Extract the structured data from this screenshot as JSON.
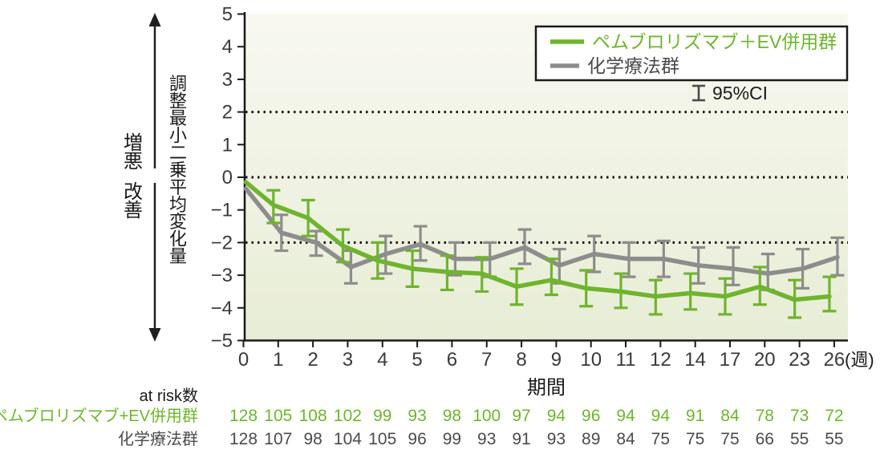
{
  "chart_data": {
    "type": "line",
    "title": "",
    "xlabel": "期間",
    "x_unit_label": "(週)",
    "ylabel": "調整最小二乗平均変化量",
    "ylim": [
      -5,
      5
    ],
    "ytick_labels": [
      "5",
      "4",
      "3",
      "2",
      "1",
      "0",
      "−1",
      "−2",
      "−3",
      "−4",
      "−5"
    ],
    "ytick_values": [
      5,
      4,
      3,
      2,
      1,
      0,
      -1,
      -2,
      -3,
      -4,
      -5
    ],
    "categories": [
      "0",
      "1",
      "2",
      "3",
      "4",
      "5",
      "6",
      "7",
      "8",
      "9",
      "10",
      "11",
      "12",
      "14",
      "17",
      "20",
      "23",
      "26"
    ],
    "reference_lines": [
      2,
      0,
      -2
    ],
    "grid": "off",
    "legend_position": "top-right",
    "direction_labels": {
      "up": "増悪",
      "down": "改善"
    },
    "legend": {
      "ci_label": "95%CI"
    },
    "colors": {
      "pembro_green": "#6fb42e",
      "chemo_gray": "#8d8d8d",
      "dark_text": "#4b4b4b",
      "plot_bg_top": "#f8f8f1",
      "plot_bg_bottom": "#e7edd5"
    },
    "series": [
      {
        "name": "ペムブロリズマブ＋EV併用群",
        "color": "#6fb42e",
        "values": [
          -0.15,
          -0.85,
          -1.25,
          -2.1,
          -2.55,
          -2.8,
          -2.9,
          -2.95,
          -3.35,
          -3.15,
          -3.4,
          -3.5,
          -3.65,
          -3.55,
          -3.65,
          -3.35,
          -3.75,
          -3.65
        ],
        "ci_high": [
          null,
          -0.4,
          -0.7,
          -1.6,
          -2.0,
          -2.25,
          -2.4,
          -2.45,
          -2.8,
          -2.5,
          -2.85,
          -2.95,
          -3.15,
          -2.95,
          -3.1,
          -2.75,
          -3.15,
          -3.05
        ],
        "ci_low": [
          null,
          -1.4,
          -1.8,
          -2.6,
          -3.1,
          -3.35,
          -3.45,
          -3.5,
          -3.9,
          -3.6,
          -3.95,
          -4.0,
          -4.2,
          -4.05,
          -4.2,
          -3.9,
          -4.3,
          -4.1
        ]
      },
      {
        "name": "化学療法群",
        "color": "#8d8d8d",
        "values": [
          -0.35,
          -1.7,
          -2.0,
          -2.75,
          -2.35,
          -2.05,
          -2.5,
          -2.5,
          -2.15,
          -2.7,
          -2.35,
          -2.5,
          -2.5,
          -2.7,
          -2.8,
          -2.95,
          -2.8,
          -2.45
        ],
        "ci_high": [
          null,
          -1.15,
          -1.65,
          -2.25,
          -1.8,
          -1.5,
          -2.0,
          -2.0,
          -1.6,
          -2.2,
          -1.8,
          -2.0,
          -1.95,
          -2.15,
          -2.15,
          -2.35,
          -2.2,
          -1.85
        ],
        "ci_low": [
          null,
          -2.25,
          -2.4,
          -3.25,
          -2.95,
          -2.55,
          -3.0,
          -3.05,
          -2.65,
          -3.25,
          -2.9,
          -3.05,
          -3.05,
          -3.25,
          -3.3,
          -3.45,
          -3.4,
          -3.0
        ]
      }
    ],
    "at_risk": {
      "header": "at risk数",
      "rows": [
        {
          "label": "ペムブロリズマブ+EV併用群",
          "color": "#6fb42e",
          "counts": [
            128,
            105,
            108,
            102,
            99,
            93,
            98,
            100,
            97,
            94,
            96,
            94,
            94,
            91,
            84,
            78,
            73,
            72
          ]
        },
        {
          "label": "化学療法群",
          "color": "#4b4b4b",
          "counts": [
            128,
            107,
            98,
            104,
            105,
            96,
            99,
            93,
            91,
            93,
            89,
            84,
            75,
            75,
            75,
            66,
            55,
            55
          ]
        }
      ]
    }
  }
}
